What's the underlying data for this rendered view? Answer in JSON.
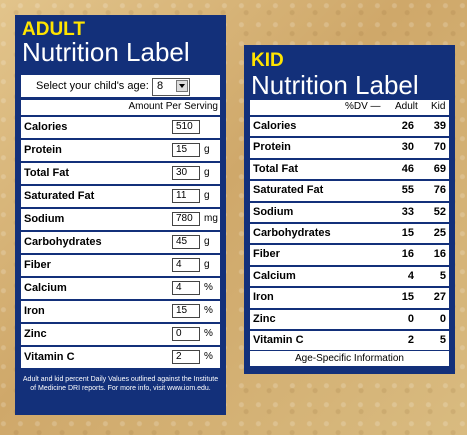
{
  "adult": {
    "heading_small": "ADULT",
    "heading_big": "Nutrition Label",
    "age_label": "Select your child's age:",
    "age_value": "8",
    "amount_header": "Amount Per Serving",
    "rows": [
      {
        "name": "Calories",
        "value": "510",
        "unit": ""
      },
      {
        "name": "Protein",
        "value": "15",
        "unit": "g"
      },
      {
        "name": "Total Fat",
        "value": "30",
        "unit": "g"
      },
      {
        "name": "Saturated Fat",
        "value": "11",
        "unit": "g"
      },
      {
        "name": "Sodium",
        "value": "780",
        "unit": "mg"
      },
      {
        "name": "Carbohydrates",
        "value": "45",
        "unit": "g"
      },
      {
        "name": "Fiber",
        "value": "4",
        "unit": "g"
      },
      {
        "name": "Calcium",
        "value": "4",
        "unit": "%"
      },
      {
        "name": "Iron",
        "value": "15",
        "unit": "%"
      },
      {
        "name": "Zinc",
        "value": "0",
        "unit": "%"
      },
      {
        "name": "Vitamin C",
        "value": "2",
        "unit": "%"
      }
    ],
    "footnote": "Adult and kid percent Daily Values outlined against the Institute of Medicine DRI reports. For more info, visit www.iom.edu."
  },
  "kid": {
    "heading_small": "KID",
    "heading_big": "Nutrition Label",
    "col_dv": "%DV —",
    "col_adult": "Adult",
    "col_kid": "Kid",
    "rows": [
      {
        "name": "Calories",
        "adult": "26",
        "kid": "39"
      },
      {
        "name": "Protein",
        "adult": "30",
        "kid": "70"
      },
      {
        "name": "Total Fat",
        "adult": "46",
        "kid": "69"
      },
      {
        "name": "Saturated Fat",
        "adult": "55",
        "kid": "76"
      },
      {
        "name": "Sodium",
        "adult": "33",
        "kid": "52"
      },
      {
        "name": "Carbohydrates",
        "adult": "15",
        "kid": "25"
      },
      {
        "name": "Fiber",
        "adult": "16",
        "kid": "16"
      },
      {
        "name": "Calcium",
        "adult": "4",
        "kid": "5"
      },
      {
        "name": "Iron",
        "adult": "15",
        "kid": "27"
      },
      {
        "name": "Zinc",
        "adult": "0",
        "kid": "0"
      },
      {
        "name": "Vitamin C",
        "adult": "2",
        "kid": "5"
      }
    ],
    "footer": "Age-Specific Information"
  },
  "colors": {
    "panel": "#13307a",
    "accent": "#ffe400",
    "background": "#d8b77a"
  }
}
